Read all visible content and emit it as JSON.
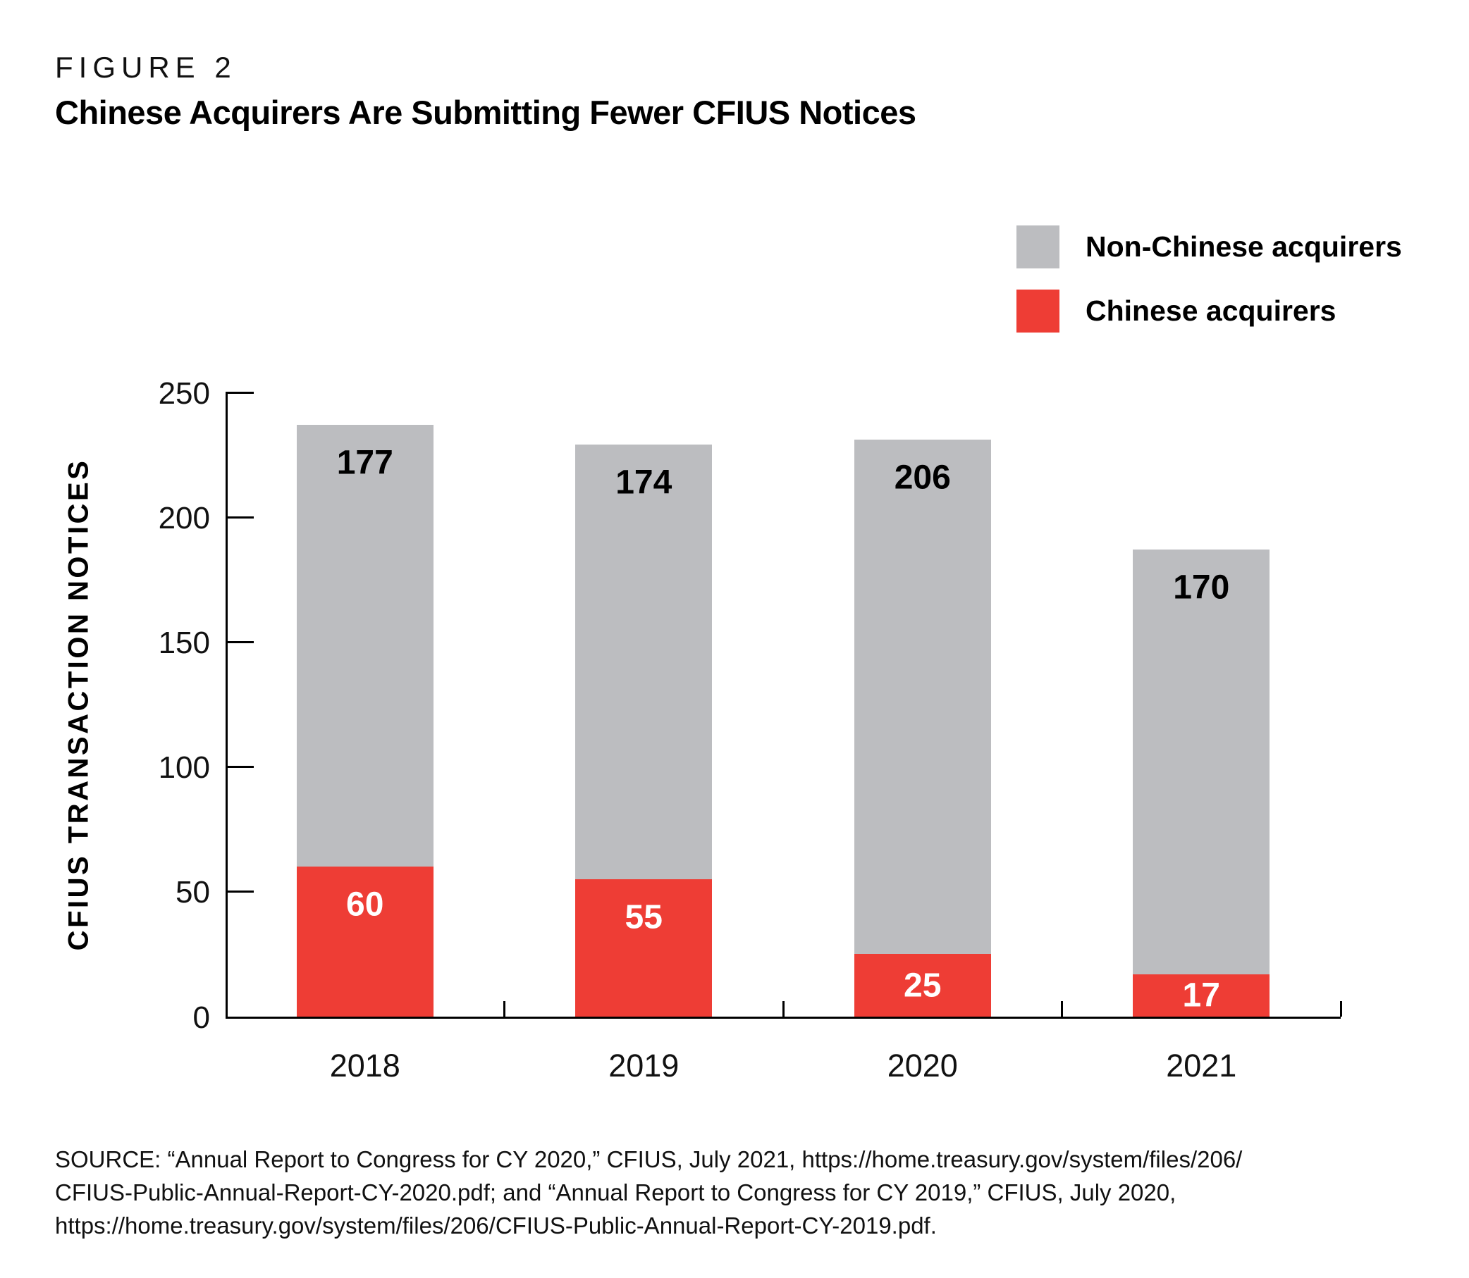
{
  "figure_label": "FIGURE 2",
  "title": "Chinese Acquirers Are Submitting Fewer CFIUS Notices",
  "legend": {
    "items": [
      {
        "label": "Non-Chinese acquirers",
        "color": "#bcbdc0"
      },
      {
        "label": "Chinese acquirers",
        "color": "#ee3d35"
      }
    ]
  },
  "chart_data": {
    "type": "bar",
    "stacked": true,
    "title": "Chinese Acquirers Are Submitting Fewer CFIUS Notices",
    "categories": [
      "2018",
      "2019",
      "2020",
      "2021"
    ],
    "series": [
      {
        "name": "Chinese acquirers",
        "color": "#ee3d35",
        "label_color": "#ffffff",
        "values": [
          60,
          55,
          25,
          17
        ]
      },
      {
        "name": "Non-Chinese acquirers",
        "color": "#bcbdc0",
        "label_color": "#000000",
        "values": [
          177,
          174,
          206,
          170
        ]
      }
    ],
    "xlabel": "",
    "ylabel": "CFIUS TRANSACTION NOTICES",
    "ylim": [
      0,
      250
    ],
    "yticks": [
      0,
      50,
      100,
      150,
      200,
      250
    ],
    "grid": false,
    "value_labels": true,
    "legend_position": "top-right"
  },
  "source": {
    "lines": [
      "SOURCE: “Annual Report to Congress for CY 2020,” CFIUS, July 2021, https://home.treasury.gov/system/files/206/",
      "CFIUS-Public-Annual-Report-CY-2020.pdf; and “Annual Report to Congress for CY 2019,” CFIUS, July 2020,",
      "https://home.treasury.gov/system/files/206/CFIUS-Public-Annual-Report-CY-2019.pdf."
    ]
  }
}
